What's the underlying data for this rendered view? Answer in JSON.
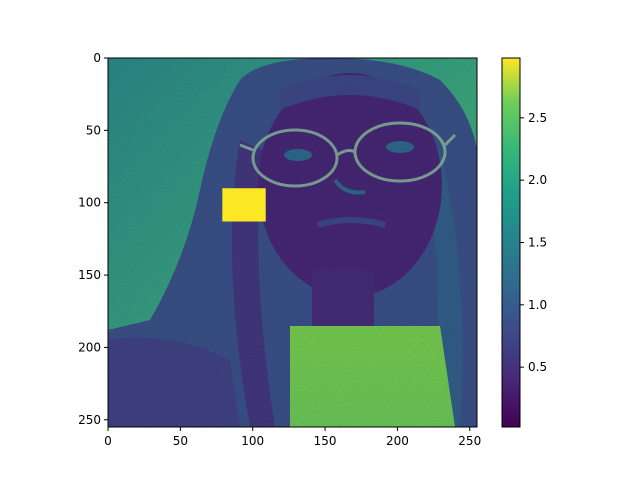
{
  "chart_data": {
    "type": "heatmap",
    "colormap": "viridis",
    "image_content": "grayscale photograph of a person with long hair and glasses, rendered as intensity values; a solid yellow rectangle patch covers the left cheek area",
    "x_ticks": [
      "0",
      "50",
      "100",
      "150",
      "200",
      "250"
    ],
    "y_ticks": [
      "0",
      "50",
      "100",
      "150",
      "200",
      "250"
    ],
    "xlim": [
      0,
      255
    ],
    "ylim": [
      255,
      0
    ],
    "colorbar": {
      "ticks": [
        "0.5",
        "1.0",
        "1.5",
        "2.0",
        "2.5"
      ],
      "range": [
        0.02,
        2.98
      ]
    },
    "highlight_patch": {
      "x_range": [
        79,
        109
      ],
      "y_range": [
        90,
        113
      ],
      "value": 2.98
    },
    "colors": {
      "viridis_low": "#440154",
      "viridis_mid": "#21918c",
      "viridis_high": "#fde725",
      "background_hair": "#3b528b",
      "background_wall": "#35b779"
    }
  }
}
